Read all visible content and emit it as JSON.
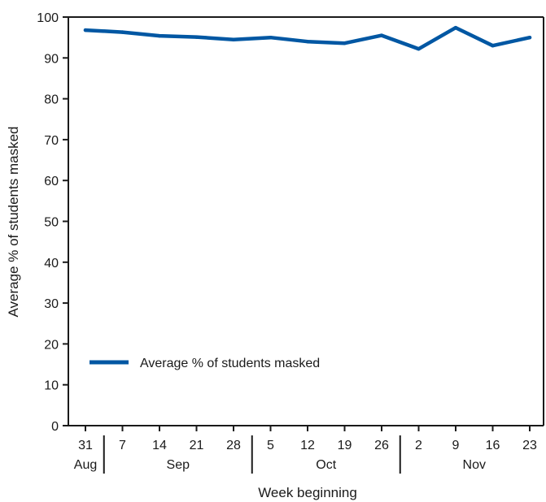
{
  "chart_data": {
    "type": "line",
    "title": "",
    "xlabel": "Week beginning",
    "ylabel": "Average % of students masked",
    "ylim": [
      0,
      100
    ],
    "y_ticks": [
      0,
      10,
      20,
      30,
      40,
      50,
      60,
      70,
      80,
      90,
      100
    ],
    "x_tick_labels": [
      "31",
      "7",
      "14",
      "21",
      "28",
      "5",
      "12",
      "19",
      "26",
      "2",
      "9",
      "16",
      "23"
    ],
    "month_groups": [
      {
        "label": "Aug",
        "span": 1
      },
      {
        "label": "Sep",
        "span": 4
      },
      {
        "label": "Oct",
        "span": 4
      },
      {
        "label": "Nov",
        "span": 4
      }
    ],
    "series": [
      {
        "name": "Average % of students masked",
        "color": "#0057a3",
        "values": [
          96.8,
          96.3,
          95.4,
          95.1,
          94.5,
          95.0,
          94.0,
          93.6,
          95.5,
          92.2,
          97.4,
          93.0,
          95.0
        ]
      }
    ],
    "grid": false,
    "legend_position": "bottom-left"
  }
}
